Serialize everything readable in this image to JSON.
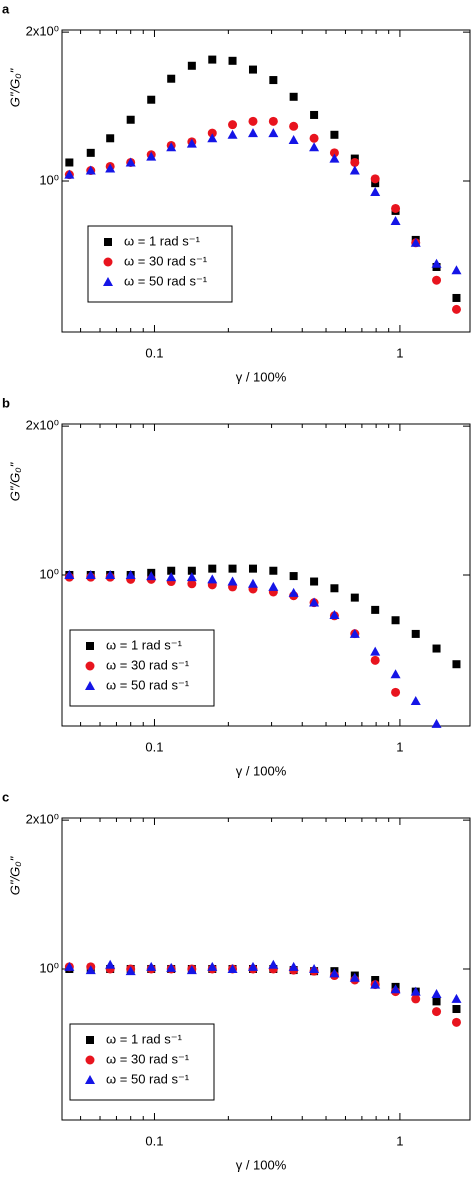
{
  "chart_data": [
    {
      "type": "scatter",
      "panel_label": "a",
      "x": [
        0.045,
        0.055,
        0.066,
        0.08,
        0.097,
        0.117,
        0.142,
        0.172,
        0.208,
        0.252,
        0.305,
        0.369,
        0.447,
        0.541,
        0.655,
        0.793,
        0.96,
        1.16,
        1.41,
        1.7
      ],
      "series": [
        {
          "name": "ω = 1 rad s⁻¹",
          "color": "#000000",
          "marker": "square",
          "values": [
            1.09,
            1.14,
            1.22,
            1.33,
            1.46,
            1.61,
            1.71,
            1.76,
            1.75,
            1.68,
            1.6,
            1.48,
            1.36,
            1.24,
            1.11,
            0.99,
            0.87,
            0.76,
            0.67,
            0.58
          ]
        },
        {
          "name": "ω = 30 rad s⁻¹",
          "color": "#e8141e",
          "marker": "circle",
          "values": [
            1.03,
            1.05,
            1.07,
            1.09,
            1.13,
            1.18,
            1.2,
            1.25,
            1.3,
            1.32,
            1.32,
            1.29,
            1.22,
            1.14,
            1.09,
            1.01,
            0.88,
            0.75,
            0.63,
            0.55
          ]
        },
        {
          "name": "ω = 50 rad s⁻¹",
          "color": "#1515e6",
          "marker": "triangle",
          "values": [
            1.03,
            1.05,
            1.06,
            1.09,
            1.12,
            1.17,
            1.19,
            1.22,
            1.24,
            1.25,
            1.25,
            1.21,
            1.17,
            1.11,
            1.05,
            0.95,
            0.83,
            0.75,
            0.68,
            0.66
          ]
        }
      ],
      "x_label": "γ / 100%",
      "y_label": "G\"/G₀\"",
      "log_x": true,
      "log_y": true,
      "xlim": [
        0.042,
        1.93
      ],
      "ylim": [
        0.495,
        2.02
      ],
      "xticks": [
        0.1,
        1
      ],
      "xminorticks": [
        0.05,
        0.06,
        0.07,
        0.08,
        0.09,
        0.2,
        0.3,
        0.4,
        0.5,
        0.6,
        0.7,
        0.8,
        0.9
      ],
      "yticks": [
        {
          "value": 1,
          "label": "10⁰"
        },
        {
          "value": 2,
          "label": "2x10⁰"
        }
      ],
      "legend": "center left"
    },
    {
      "type": "scatter",
      "panel_label": "b",
      "x": [
        0.045,
        0.055,
        0.066,
        0.08,
        0.097,
        0.117,
        0.142,
        0.172,
        0.208,
        0.252,
        0.305,
        0.369,
        0.447,
        0.541,
        0.655,
        0.793,
        0.96,
        1.16,
        1.41,
        1.7
      ],
      "series": [
        {
          "name": "ω = 1 rad s⁻¹",
          "color": "#000000",
          "marker": "square",
          "values": [
            1.0,
            1.0,
            1.0,
            1.0,
            1.01,
            1.02,
            1.02,
            1.03,
            1.03,
            1.03,
            1.02,
            0.995,
            0.97,
            0.94,
            0.9,
            0.85,
            0.81,
            0.76,
            0.71,
            0.66
          ]
        },
        {
          "name": "ω = 30 rad s⁻¹",
          "color": "#e8141e",
          "marker": "circle",
          "values": [
            0.99,
            0.99,
            0.99,
            0.98,
            0.98,
            0.97,
            0.96,
            0.955,
            0.946,
            0.937,
            0.924,
            0.908,
            0.879,
            0.827,
            0.761,
            0.672,
            0.579,
            null,
            null,
            null
          ]
        },
        {
          "name": "ω = 50 rad s⁻¹",
          "color": "#1515e6",
          "marker": "triangle",
          "values": [
            1.0,
            1.0,
            1.0,
            1.0,
            0.995,
            0.99,
            0.99,
            0.98,
            0.97,
            0.96,
            0.946,
            0.92,
            0.88,
            0.83,
            0.76,
            0.7,
            0.63,
            0.556,
            0.5,
            null
          ]
        }
      ],
      "x_label": "γ / 100%",
      "y_label": "G\"/G₀\"",
      "log_x": true,
      "log_y": true,
      "xlim": [
        0.042,
        1.93
      ],
      "ylim": [
        0.495,
        2.02
      ],
      "xticks": [
        0.1,
        1
      ],
      "xminorticks": [
        0.05,
        0.06,
        0.07,
        0.08,
        0.09,
        0.2,
        0.3,
        0.4,
        0.5,
        0.6,
        0.7,
        0.8,
        0.9
      ],
      "yticks": [
        {
          "value": 1,
          "label": "10⁰"
        },
        {
          "value": 2,
          "label": "2x10⁰"
        }
      ],
      "legend": "lower left"
    },
    {
      "type": "scatter",
      "panel_label": "c",
      "x": [
        0.045,
        0.055,
        0.066,
        0.08,
        0.097,
        0.117,
        0.142,
        0.172,
        0.208,
        0.252,
        0.305,
        0.369,
        0.447,
        0.541,
        0.655,
        0.793,
        0.96,
        1.16,
        1.41,
        1.7
      ],
      "series": [
        {
          "name": "ω = 1 rad s⁻¹",
          "color": "#000000",
          "marker": "square",
          "values": [
            1.0,
            1.0,
            1.0,
            1.0,
            1.0,
            1.0,
            1.0,
            1.0,
            1.0,
            1.0,
            1.0,
            0.995,
            0.99,
            0.99,
            0.97,
            0.95,
            0.92,
            0.9,
            0.86,
            0.83
          ]
        },
        {
          "name": "ω = 30 rad s⁻¹",
          "color": "#e8141e",
          "marker": "circle",
          "values": [
            1.01,
            1.01,
            1.0,
            1.0,
            1.0,
            1.0,
            1.0,
            1.0,
            1.0,
            1.0,
            1.0,
            0.995,
            0.99,
            0.97,
            0.95,
            0.93,
            0.9,
            0.87,
            0.82,
            0.78
          ]
        },
        {
          "name": "ω = 50 rad s⁻¹",
          "color": "#1515e6",
          "marker": "triangle",
          "values": [
            1.01,
            0.995,
            1.02,
            0.99,
            1.01,
            1.005,
            0.995,
            1.01,
            1.0,
            1.01,
            1.02,
            1.01,
            1.0,
            0.98,
            0.96,
            0.93,
            0.91,
            0.9,
            0.89,
            0.87
          ]
        }
      ],
      "x_label": "γ / 100%",
      "y_label": "G\"/G₀\"",
      "log_x": true,
      "log_y": true,
      "xlim": [
        0.042,
        1.93
      ],
      "ylim": [
        0.495,
        2.02
      ],
      "xticks": [
        0.1,
        1
      ],
      "xminorticks": [
        0.05,
        0.06,
        0.07,
        0.08,
        0.09,
        0.2,
        0.3,
        0.4,
        0.5,
        0.6,
        0.7,
        0.8,
        0.9
      ],
      "yticks": [
        {
          "value": 1,
          "label": "10⁰"
        },
        {
          "value": 2,
          "label": "2x10⁰"
        }
      ],
      "legend": "lower left"
    }
  ]
}
